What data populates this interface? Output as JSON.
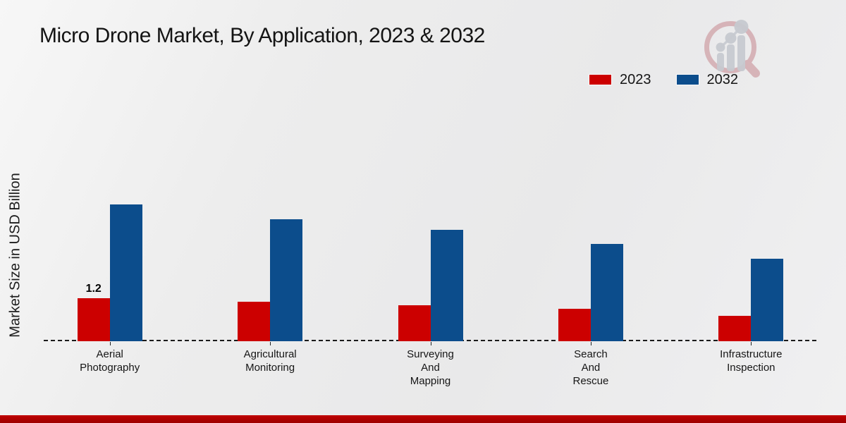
{
  "title": "Micro Drone Market, By Application, 2023 & 2032",
  "colors": {
    "series_2023": "#cc0000",
    "series_2032": "#0c4d8c",
    "footer_bar": "#c00000",
    "background": "#ebebeb",
    "axis_line": "#1b1b1b"
  },
  "logo": {
    "name": "market-research-magnifier-logo"
  },
  "chart_data": {
    "type": "bar",
    "title": "Micro Drone Market, By Application, 2023 & 2032",
    "xlabel": "",
    "ylabel": "Market Size in USD Billion",
    "ylim": [
      0,
      4
    ],
    "grid": false,
    "axis_style": "dashed-baseline-only",
    "legend_position": "top-right",
    "categories": [
      [
        "Aerial",
        "Photography"
      ],
      [
        "Agricultural",
        "Monitoring"
      ],
      [
        "Surveying",
        "And",
        "Mapping"
      ],
      [
        "Search",
        "And",
        "Rescue"
      ],
      [
        "Infrastructure",
        "Inspection"
      ]
    ],
    "series": [
      {
        "name": "2023",
        "color": "#cc0000",
        "values": [
          1.2,
          1.1,
          1.0,
          0.9,
          0.7
        ]
      },
      {
        "name": "2032",
        "color": "#0c4d8c",
        "values": [
          3.8,
          3.4,
          3.1,
          2.7,
          2.3
        ]
      }
    ],
    "data_labels": [
      {
        "series": "2023",
        "category_index": 0,
        "text": "1.2"
      }
    ]
  }
}
